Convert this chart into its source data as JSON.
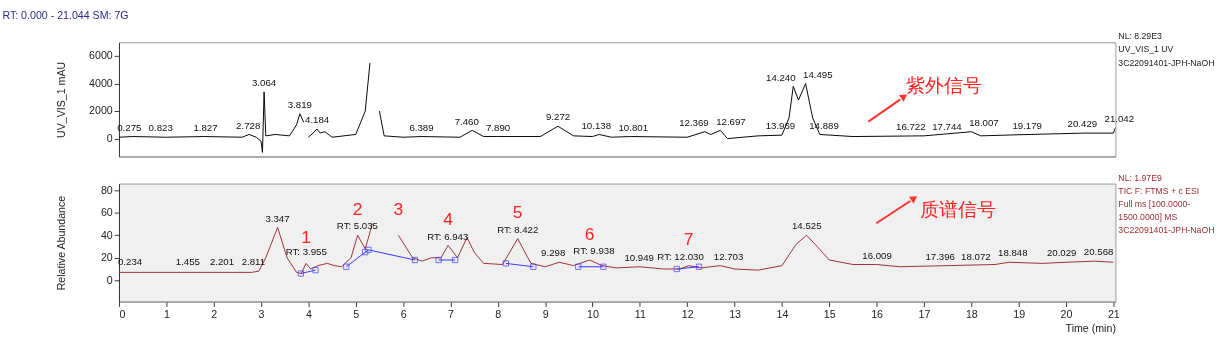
{
  "chart_data": [
    {
      "type": "line",
      "title": "RT: 0.000 - 21.044   SM: 7G",
      "ylabel": "UV_VIS_1 mAU",
      "xlim": [
        0,
        21.044
      ],
      "ylim": [
        -1300,
        7000
      ],
      "yticks": [
        0,
        2000,
        4000,
        6000
      ],
      "tick_labels": "y",
      "series": [
        {
          "color": "#000000",
          "x": [
            0,
            0.3,
            1,
            1.8,
            2.6,
            2.75,
            2.9,
            3.0,
            3.03,
            3.064,
            3.1,
            3.3,
            3.6,
            3.75,
            3.82,
            3.9,
            3.95,
            4.0,
            4.1,
            4.18,
            4.25,
            4.35,
            4.5,
            5.0,
            5.2,
            5.3,
            5.35,
            5.45,
            5.5,
            5.6,
            6.0,
            6.4,
            7.2,
            7.46,
            7.7,
            8.0,
            8.9,
            9.27,
            9.6,
            10.0,
            10.14,
            10.4,
            10.8,
            12.0,
            12.37,
            12.5,
            12.7,
            12.85,
            13.5,
            14.0,
            14.15,
            14.24,
            14.35,
            14.5,
            14.65,
            14.8,
            15.5,
            17.0,
            18.0,
            18.2,
            19.2,
            20.4,
            21.0,
            21.044
          ],
          "values": [
            100,
            150,
            100,
            150,
            100,
            300,
            100,
            -200,
            -1000,
            3400,
            200,
            300,
            200,
            1000,
            1800,
            1200,
            null,
            100,
            400,
            700,
            400,
            500,
            100,
            300,
            2000,
            5500,
            null,
            null,
            2000,
            200,
            100,
            150,
            100,
            600,
            150,
            150,
            150,
            900,
            200,
            150,
            300,
            100,
            150,
            100,
            500,
            300,
            600,
            0,
            200,
            250,
            1500,
            3800,
            2800,
            4000,
            1500,
            300,
            150,
            200,
            500,
            200,
            300,
            400,
            400,
            800
          ]
        }
      ],
      "annotations": [
        {
          "text": "0.275",
          "x": 0.275,
          "y": 150
        },
        {
          "text": "0.823",
          "x": 0.823,
          "y": 100
        },
        {
          "text": "1.827",
          "x": 1.827,
          "y": 150
        },
        {
          "text": "2.728",
          "x": 2.728,
          "y": 300
        },
        {
          "text": "3.064",
          "x": 3.064,
          "y": 3400
        },
        {
          "text": "3.819",
          "x": 3.819,
          "y": 1800
        },
        {
          "text": "4.184",
          "x": 4.184,
          "y": 700
        },
        {
          "text": "6.389",
          "x": 6.389,
          "y": 150
        },
        {
          "text": "7.460",
          "x": 7.46,
          "y": 600
        },
        {
          "text": "7.890",
          "x": 7.89,
          "y": 150
        },
        {
          "text": "9.272",
          "x": 9.272,
          "y": 900
        },
        {
          "text": "10.138",
          "x": 10.138,
          "y": 300
        },
        {
          "text": "10.801",
          "x": 10.801,
          "y": 150
        },
        {
          "text": "12.369",
          "x": 12.369,
          "y": 500
        },
        {
          "text": "12.697",
          "x": 12.697,
          "y": 600
        },
        {
          "text": "13.969",
          "x": 13.969,
          "y": 250
        },
        {
          "text": "14.240",
          "x": 14.24,
          "y": 3800
        },
        {
          "text": "14.495",
          "x": 14.495,
          "y": 4000
        },
        {
          "text": "14.889",
          "x": 14.889,
          "y": 300
        },
        {
          "text": "16.722",
          "x": 16.722,
          "y": 200
        },
        {
          "text": "17.744",
          "x": 17.744,
          "y": 200
        },
        {
          "text": "18.007",
          "x": 18.007,
          "y": 500
        },
        {
          "text": "19.179",
          "x": 19.179,
          "y": 300
        },
        {
          "text": "20.429",
          "x": 20.429,
          "y": 400
        },
        {
          "text": "21.042",
          "x": 21.042,
          "y": 800
        },
        "NL: 8.29E3",
        "UV_VIS_1  UV",
        "3C22091401-JPH-NaOH",
        "紫外信号"
      ]
    },
    {
      "type": "line",
      "xlabel": "Time (min)",
      "ylabel": "Relative Abundance",
      "xlim": [
        0,
        21.044
      ],
      "xticks": [
        0,
        1,
        2,
        3,
        4,
        5,
        6,
        7,
        8,
        9,
        10,
        11,
        12,
        13,
        14,
        15,
        16,
        17,
        18,
        19,
        20,
        21
      ],
      "ylim": [
        -19,
        86
      ],
      "yticks": [
        0,
        20,
        40,
        60,
        80
      ],
      "series": [
        {
          "color": "#9b2d30",
          "x": [
            0,
            2.8,
            2.95,
            3.1,
            3.35,
            3.55,
            3.75,
            3.85,
            3.95,
            4.05,
            4.2,
            4.4,
            4.55,
            4.7,
            4.9,
            5.04,
            5.2,
            5.35,
            5.5,
            5.7,
            5.9,
            6.2,
            6.4,
            6.6,
            6.8,
            6.95,
            7.15,
            7.35,
            7.5,
            7.7,
            8.1,
            8.42,
            8.7,
            9.0,
            9.3,
            9.6,
            9.94,
            10.2,
            10.5,
            11.0,
            11.5,
            11.85,
            12.03,
            12.3,
            12.7,
            13.0,
            13.5,
            14.0,
            14.3,
            14.52,
            14.7,
            15.0,
            15.5,
            16.0,
            16.5,
            17.5,
            18.5,
            18.8,
            19.5,
            20.0,
            20.6,
            21.0
          ],
          "values": [
            7,
            7,
            8,
            20,
            47,
            20,
            7,
            6,
            15,
            10,
            13,
            15,
            13,
            12,
            20,
            40,
            28,
            50,
            null,
            null,
            40,
            20,
            17,
            20,
            20,
            31,
            20,
            38,
            25,
            15,
            14,
            37,
            15,
            12,
            16,
            13,
            18,
            13,
            11,
            12,
            10,
            10,
            13,
            11,
            13,
            10,
            9,
            13,
            32,
            40,
            32,
            18,
            14,
            14,
            12,
            13,
            14,
            16,
            15,
            16,
            17,
            16
          ]
        },
        {
          "color": "#3333ff",
          "marker": "square",
          "x": [
            3.84,
            4.15,
            4.5,
            4.8,
            5.2,
            5.27,
            6.25,
            6.5,
            6.75,
            7.1,
            7.6,
            8.17,
            8.75,
            9.2,
            9.7,
            10.23,
            11.0,
            11.78,
            12.25
          ],
          "values": [
            6,
            9,
            null,
            12,
            25,
            27,
            18,
            null,
            18,
            18,
            null,
            15,
            12,
            null,
            12,
            12,
            null,
            10,
            12
          ]
        }
      ],
      "annotations": [
        {
          "text": "0.234",
          "x": 0.234,
          "y": 8
        },
        {
          "text": "1.455",
          "x": 1.455,
          "y": 8
        },
        {
          "text": "2.201",
          "x": 2.201,
          "y": 8
        },
        {
          "text": "2.811",
          "x": 2.811,
          "y": 8
        },
        {
          "text": "3.347",
          "x": 3.347,
          "y": 47
        },
        {
          "text": "RT: 3.955",
          "x": 3.955,
          "y": 17
        },
        {
          "text": "RT: 5.035",
          "x": 5.035,
          "y": 40
        },
        {
          "text": "RT: 6.943",
          "x": 6.943,
          "y": 31
        },
        {
          "text": "RT: 8.422",
          "x": 8.422,
          "y": 37
        },
        {
          "text": "9.298",
          "x": 9.298,
          "y": 16
        },
        {
          "text": "RT: 9.938",
          "x": 9.938,
          "y": 18
        },
        {
          "text": "10.949",
          "x": 10.949,
          "y": 12
        },
        {
          "text": "RT: 12.030",
          "x": 12.03,
          "y": 13
        },
        {
          "text": "12.703",
          "x": 12.703,
          "y": 13
        },
        {
          "text": "14.525",
          "x": 14.525,
          "y": 40
        },
        {
          "text": "16.009",
          "x": 16.009,
          "y": 14
        },
        {
          "text": "17.396",
          "x": 17.396,
          "y": 13
        },
        {
          "text": "18.072",
          "x": 18.072,
          "y": 13
        },
        {
          "text": "18.848",
          "x": 18.848,
          "y": 16
        },
        {
          "text": "20.029",
          "x": 20.029,
          "y": 16
        },
        {
          "text": "20.568",
          "x": 20.568,
          "y": 17
        },
        {
          "text": "1",
          "x": 3.95,
          "y": 15
        },
        {
          "text": "2",
          "x": 5.04,
          "y": 40
        },
        {
          "text": "3",
          "x": 5.9,
          "y": 40
        },
        {
          "text": "4",
          "x": 6.95,
          "y": 31
        },
        {
          "text": "5",
          "x": 8.42,
          "y": 37
        },
        {
          "text": "6",
          "x": 9.94,
          "y": 18
        },
        {
          "text": "7",
          "x": 12.03,
          "y": 13
        },
        "NL: 1.97E9",
        "TIC F: FTMS + c ESI Full ms [100.0000-1500.0000]  MS",
        "3C22091401-JPH-NaOH",
        "质谱信号"
      ]
    }
  ]
}
